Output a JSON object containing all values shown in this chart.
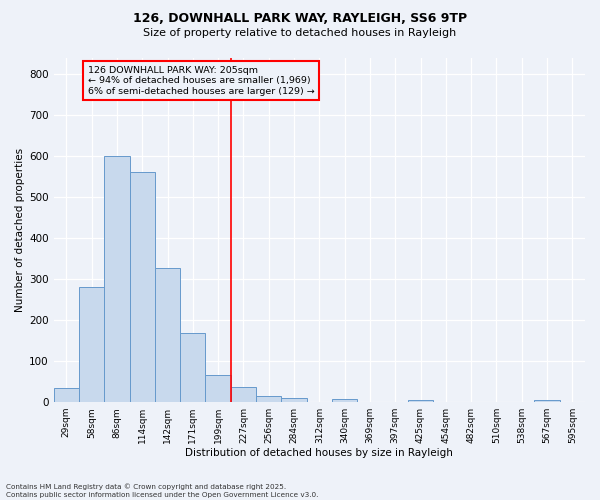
{
  "title1": "126, DOWNHALL PARK WAY, RAYLEIGH, SS6 9TP",
  "title2": "Size of property relative to detached houses in Rayleigh",
  "xlabel": "Distribution of detached houses by size in Rayleigh",
  "ylabel": "Number of detached properties",
  "bar_color": "#c8d9ed",
  "bar_edge_color": "#6699cc",
  "categories": [
    "29sqm",
    "58sqm",
    "86sqm",
    "114sqm",
    "142sqm",
    "171sqm",
    "199sqm",
    "227sqm",
    "256sqm",
    "284sqm",
    "312sqm",
    "340sqm",
    "369sqm",
    "397sqm",
    "425sqm",
    "454sqm",
    "482sqm",
    "510sqm",
    "538sqm",
    "567sqm",
    "595sqm"
  ],
  "values": [
    35,
    280,
    600,
    560,
    328,
    168,
    65,
    37,
    15,
    10,
    0,
    8,
    0,
    0,
    5,
    0,
    0,
    0,
    0,
    5,
    0
  ],
  "property_bin_index": 6,
  "annotation_title": "126 DOWNHALL PARK WAY: 205sqm",
  "annotation_line1": "← 94% of detached houses are smaller (1,969)",
  "annotation_line2": "6% of semi-detached houses are larger (129) →",
  "ylim": [
    0,
    840
  ],
  "yticks": [
    0,
    100,
    200,
    300,
    400,
    500,
    600,
    700,
    800
  ],
  "footer1": "Contains HM Land Registry data © Crown copyright and database right 2025.",
  "footer2": "Contains public sector information licensed under the Open Government Licence v3.0.",
  "bg_color": "#eef2f9"
}
